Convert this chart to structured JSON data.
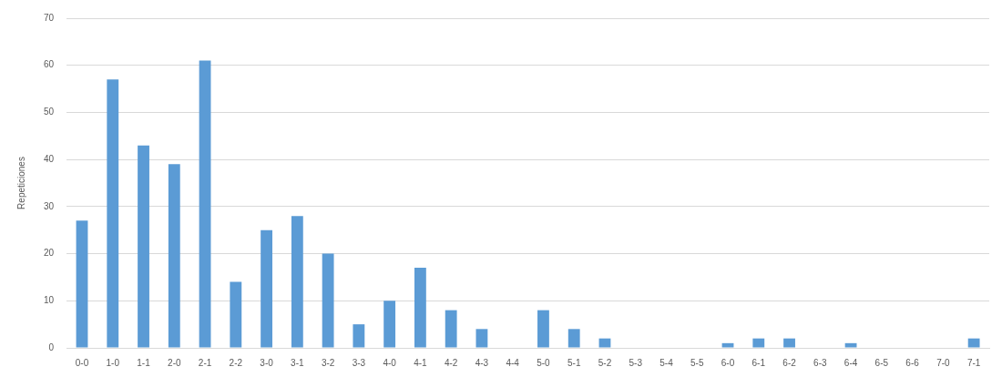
{
  "chart_data": {
    "type": "bar",
    "ylabel": "Repeticiones",
    "categories": [
      "0-0",
      "1-0",
      "1-1",
      "2-0",
      "2-1",
      "2-2",
      "3-0",
      "3-1",
      "3-2",
      "3-3",
      "4-0",
      "4-1",
      "4-2",
      "4-3",
      "4-4",
      "5-0",
      "5-1",
      "5-2",
      "5-3",
      "5-4",
      "5-5",
      "6-0",
      "6-1",
      "6-2",
      "6-3",
      "6-4",
      "6-5",
      "6-6",
      "7-0",
      "7-1"
    ],
    "values": [
      27,
      57,
      43,
      39,
      61,
      14,
      25,
      28,
      20,
      5,
      10,
      17,
      8,
      4,
      0,
      8,
      4,
      2,
      0,
      0,
      0,
      1,
      2,
      2,
      0,
      1,
      0,
      0,
      0,
      2
    ],
    "color": "#5b9bd5",
    "ylim": [
      0,
      70
    ],
    "yticks": [
      0,
      10,
      20,
      30,
      40,
      50,
      60,
      70
    ],
    "grid": "y",
    "legend": false
  }
}
